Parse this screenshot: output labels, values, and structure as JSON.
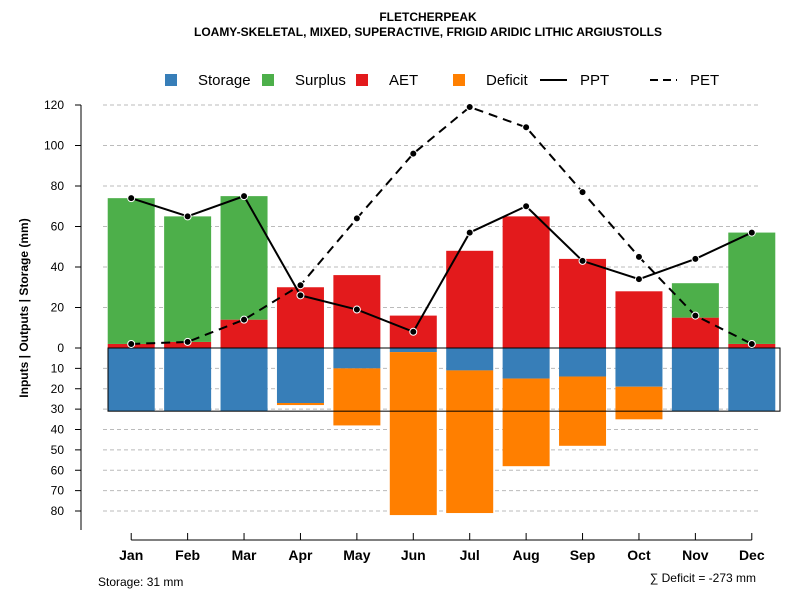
{
  "chart_data": {
    "type": "bar",
    "title": "FLETCHERPEAK",
    "subtitle": "LOAMY-SKELETAL, MIXED, SUPERACTIVE, FRIGID ARIDIC LITHIC ARGIUSTOLLS",
    "ylabel": "Inputs | Outputs | Storage    (mm)",
    "ylim_upper": [
      0,
      120
    ],
    "ylim_lower": [
      0,
      80
    ],
    "yticks_upper": [
      "0",
      "20",
      "40",
      "60",
      "80",
      "100",
      "120"
    ],
    "yticks_lower": [
      "10",
      "20",
      "30",
      "40",
      "50",
      "60",
      "70",
      "80"
    ],
    "categories": [
      "Jan",
      "Feb",
      "Mar",
      "Apr",
      "May",
      "Jun",
      "Jul",
      "Aug",
      "Sep",
      "Oct",
      "Nov",
      "Dec"
    ],
    "series": [
      {
        "name": "AET",
        "color": "#e31a1c",
        "values": [
          2,
          3,
          14,
          30,
          36,
          16,
          48,
          65,
          44,
          28,
          15,
          2
        ]
      },
      {
        "name": "Surplus",
        "color": "#4daf4a",
        "values": [
          72,
          62,
          61,
          0,
          0,
          0,
          0,
          0,
          0,
          0,
          17,
          55
        ]
      },
      {
        "name": "Storage",
        "color": "#377eb8",
        "values": [
          31,
          31,
          31,
          27,
          10,
          2,
          11,
          15,
          14,
          19,
          31,
          31
        ]
      },
      {
        "name": "Deficit",
        "color": "#ff7f00",
        "values": [
          0,
          0,
          0,
          1,
          28,
          80,
          70,
          43,
          34,
          16,
          0,
          0
        ]
      },
      {
        "name": "PPT",
        "style": "solid",
        "values": [
          74,
          65,
          75,
          26,
          19,
          8,
          57,
          70,
          43,
          34,
          44,
          57
        ]
      },
      {
        "name": "PET",
        "style": "dashed",
        "values": [
          2,
          3,
          14,
          31,
          64,
          96,
          119,
          109,
          77,
          45,
          16,
          2
        ]
      }
    ],
    "legend": {
      "position": "top",
      "items": [
        {
          "label": "Storage",
          "kind": "square",
          "color": "#377eb8"
        },
        {
          "label": "Surplus",
          "kind": "square",
          "color": "#4daf4a"
        },
        {
          "label": "AET",
          "kind": "square",
          "color": "#e31a1c"
        },
        {
          "label": "Deficit",
          "kind": "square",
          "color": "#ff7f00"
        },
        {
          "label": "PPT",
          "kind": "solid-line",
          "color": "#000000"
        },
        {
          "label": "PET",
          "kind": "dashed-line",
          "color": "#000000"
        }
      ]
    },
    "footnote_left": "Storage: 31 mm",
    "footnote_right": "∑ Deficit = -273 mm",
    "grid": true
  }
}
